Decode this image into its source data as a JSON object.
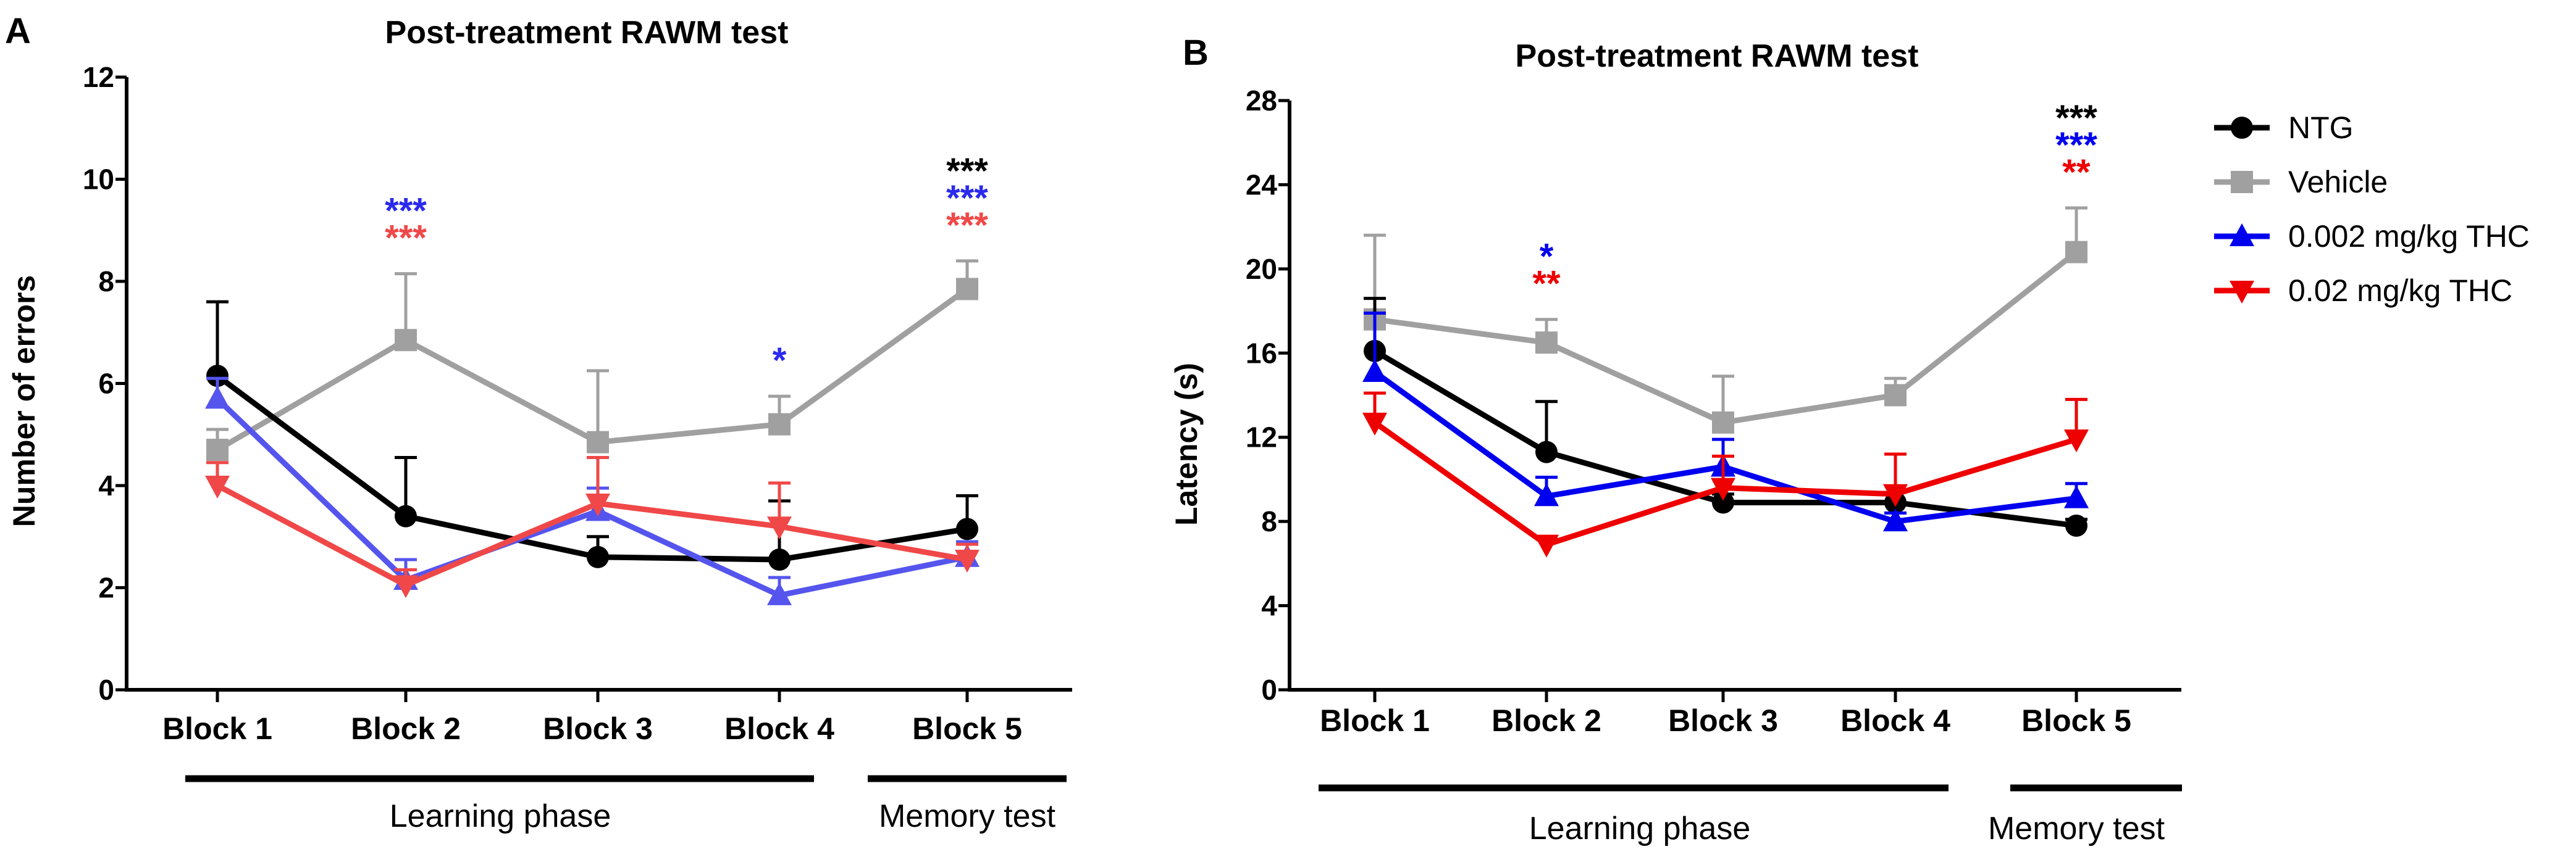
{
  "chart_data": [
    {
      "panel": "A",
      "type": "line",
      "title": "Post-treatment RAWM test",
      "xlabel": "",
      "ylabel": "Number of errors",
      "ylim": [
        0,
        12
      ],
      "yticks": [
        "0",
        "2",
        "4",
        "6",
        "8",
        "10",
        "12"
      ],
      "categories": [
        "Block 1",
        "Block 2",
        "Block 3",
        "Block 4",
        "Block 5"
      ],
      "phases": [
        {
          "label": "Learning phase",
          "from": "Block 1",
          "to": "Block 4"
        },
        {
          "label": "Memory test",
          "from": "Block 5",
          "to": "Block 5"
        }
      ],
      "series": [
        {
          "name": "NTG",
          "color": "#000000",
          "marker": "circle",
          "values": [
            6.15,
            3.4,
            2.6,
            2.55,
            3.15
          ],
          "errors": [
            1.45,
            1.15,
            0.4,
            1.15,
            0.65
          ]
        },
        {
          "name": "Vehicle",
          "color": "#a0a0a0",
          "marker": "square",
          "values": [
            4.7,
            6.85,
            4.85,
            5.2,
            7.85
          ],
          "errors": [
            0.4,
            1.3,
            1.4,
            0.55,
            0.55
          ]
        },
        {
          "name": "0.002 mg/kg THC",
          "color": "#5555ee",
          "marker": "triangle-up",
          "values": [
            5.7,
            2.15,
            3.5,
            1.85,
            2.6
          ],
          "errors": [
            0.4,
            0.4,
            0.45,
            0.35,
            0.3
          ]
        },
        {
          "name": "0.02 mg/kg THC",
          "color": "#f04848",
          "marker": "triangle-down",
          "values": [
            4.0,
            2.05,
            3.65,
            3.2,
            2.55
          ],
          "errors": [
            0.45,
            0.3,
            0.9,
            0.85,
            0.3
          ]
        }
      ],
      "annotations": [
        {
          "category": "Block 2",
          "text": "***",
          "color": "#2a2aee"
        },
        {
          "category": "Block 2",
          "text": "***",
          "color": "#f04848"
        },
        {
          "category": "Block 4",
          "text": "*",
          "color": "#2a2aee"
        },
        {
          "category": "Block 5",
          "text": "***",
          "color": "#000000"
        },
        {
          "category": "Block 5",
          "text": "***",
          "color": "#2a2aee"
        },
        {
          "category": "Block 5",
          "text": "***",
          "color": "#f04848"
        }
      ]
    },
    {
      "panel": "B",
      "type": "line",
      "title": "Post-treatment RAWM test",
      "xlabel": "",
      "ylabel": "Latency (s)",
      "ylim": [
        0,
        28
      ],
      "yticks": [
        "0",
        "4",
        "8",
        "12",
        "16",
        "20",
        "24",
        "28"
      ],
      "categories": [
        "Block 1",
        "Block 2",
        "Block 3",
        "Block 4",
        "Block 5"
      ],
      "phases": [
        {
          "label": "Learning phase",
          "from": "Block 1",
          "to": "Block 4"
        },
        {
          "label": "Memory test",
          "from": "Block 5",
          "to": "Block 5"
        }
      ],
      "series": [
        {
          "name": "NTG",
          "color": "#000000",
          "marker": "circle",
          "values": [
            16.1,
            11.3,
            8.9,
            8.9,
            7.8
          ],
          "errors": [
            2.5,
            2.4,
            0.4,
            2.3,
            0.3
          ]
        },
        {
          "name": "Vehicle",
          "color": "#a0a0a0",
          "marker": "square",
          "values": [
            17.6,
            16.5,
            12.7,
            14.0,
            20.8
          ],
          "errors": [
            4.0,
            1.1,
            2.2,
            0.8,
            2.1
          ]
        },
        {
          "name": "0.002 mg/kg THC",
          "color": "#0000ee",
          "marker": "triangle-up",
          "values": [
            15.1,
            9.2,
            10.6,
            8.0,
            9.1
          ],
          "errors": [
            2.8,
            0.9,
            1.3,
            0.4,
            0.7
          ]
        },
        {
          "name": "0.02 mg/kg THC",
          "color": "#ee0000",
          "marker": "triangle-down",
          "values": [
            12.7,
            6.9,
            9.6,
            9.3,
            11.9
          ],
          "errors": [
            1.4,
            0.3,
            1.5,
            1.9,
            1.9
          ]
        }
      ],
      "annotations": [
        {
          "category": "Block 2",
          "text": "*",
          "color": "#0000ee"
        },
        {
          "category": "Block 2",
          "text": "**",
          "color": "#ee0000"
        },
        {
          "category": "Block 5",
          "text": "***",
          "color": "#000000"
        },
        {
          "category": "Block 5",
          "text": "***",
          "color": "#0000ee"
        },
        {
          "category": "Block 5",
          "text": "**",
          "color": "#ee0000"
        }
      ]
    }
  ],
  "legend": [
    {
      "label": "NTG",
      "color": "#000000",
      "marker": "circle"
    },
    {
      "label": "Vehicle",
      "color": "#a0a0a0",
      "marker": "square"
    },
    {
      "label": "0.002 mg/kg THC",
      "color": "#0000ee",
      "marker": "triangle-up"
    },
    {
      "label": "0.02 mg/kg THC",
      "color": "#ee0000",
      "marker": "triangle-down"
    }
  ]
}
